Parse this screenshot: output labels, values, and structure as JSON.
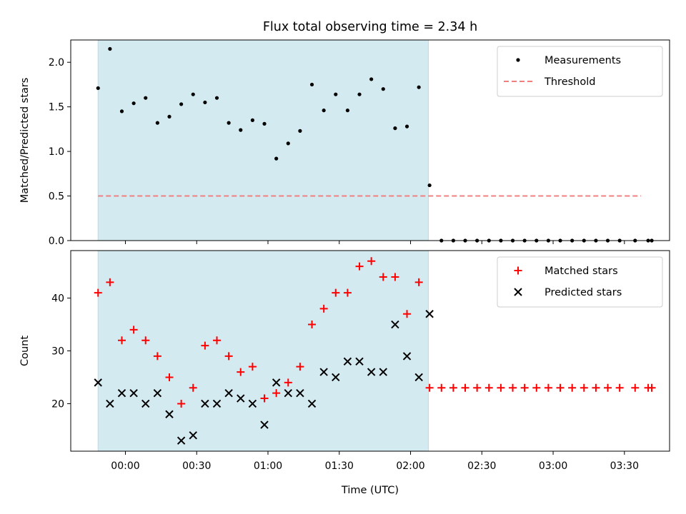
{
  "chart_data": {
    "title": "Flux total observing time = 2.34 h",
    "xlabel": "Time (UTC)",
    "x_ticks": [
      "00:00",
      "00:30",
      "01:00",
      "01:30",
      "02:00",
      "02:30",
      "03:00",
      "03:30"
    ],
    "x_unit": "minutes after 00:00 UTC",
    "x_range": [
      -23,
      229
    ],
    "shaded_interval": [
      -11.5,
      127.5
    ],
    "shade_color": "#d4eaf1",
    "time_points": [
      -11.5,
      -6.5,
      -1.5,
      3.5,
      8.5,
      13.5,
      18.5,
      23.5,
      28.5,
      33.5,
      38.5,
      43.5,
      48.5,
      53.5,
      58.5,
      63.5,
      68.5,
      73.5,
      78.5,
      83.5,
      88.5,
      93.5,
      98.5,
      103.5,
      108.5,
      113.5,
      118.5,
      123.5,
      128,
      133,
      138,
      143,
      148,
      153,
      158,
      163,
      168,
      173,
      178,
      183,
      188,
      193,
      198,
      203,
      208,
      214.5,
      220,
      221.5
    ],
    "panels": [
      {
        "type": "scatter",
        "ylabel": "Matched/Predicted stars",
        "ylim": [
          0,
          2.25
        ],
        "y_ticks": [
          "0.0",
          "0.5",
          "1.0",
          "1.5",
          "2.0"
        ],
        "legend_position": "top-right",
        "series": [
          {
            "name": "Measurements",
            "marker": "dot",
            "color": "#000000",
            "values": [
              1.71,
              2.15,
              1.45,
              1.54,
              1.6,
              1.32,
              1.39,
              1.53,
              1.64,
              1.55,
              1.6,
              1.32,
              1.24,
              1.35,
              1.31,
              0.92,
              1.09,
              1.23,
              1.75,
              1.46,
              1.64,
              1.46,
              1.64,
              1.81,
              1.7,
              1.26,
              1.28,
              1.72,
              0.62,
              0,
              0,
              0,
              0,
              0,
              0,
              0,
              0,
              0,
              0,
              0,
              0,
              0,
              0,
              0,
              0,
              0,
              0,
              0
            ]
          }
        ],
        "threshold": {
          "name": "Threshold",
          "value": 0.5,
          "x_range": [
            -11.5,
            217
          ],
          "color": "#f08080",
          "style": "dashed"
        }
      },
      {
        "type": "scatter",
        "ylabel": "Count",
        "ylim": [
          11,
          49
        ],
        "y_ticks": [
          "20",
          "30",
          "40"
        ],
        "legend_position": "top-right",
        "series": [
          {
            "name": "Matched stars",
            "marker": "plus",
            "color": "#ff0000",
            "values": [
              41,
              43,
              32,
              34,
              32,
              29,
              25,
              20,
              23,
              31,
              32,
              29,
              26,
              27,
              21,
              22,
              24,
              27,
              35,
              38,
              41,
              41,
              46,
              47,
              44,
              44,
              37,
              43,
              23,
              23,
              23,
              23,
              23,
              23,
              23,
              23,
              23,
              23,
              23,
              23,
              23,
              23,
              23,
              23,
              23,
              23,
              23,
              23
            ]
          },
          {
            "name": "Predicted stars",
            "marker": "x",
            "color": "#000000",
            "values": [
              24,
              20,
              22,
              22,
              20,
              22,
              18,
              13,
              14,
              20,
              20,
              22,
              21,
              20,
              16,
              24,
              22,
              22,
              20,
              26,
              25,
              28,
              28,
              26,
              26,
              35,
              29,
              25,
              37
            ]
          }
        ]
      }
    ]
  }
}
